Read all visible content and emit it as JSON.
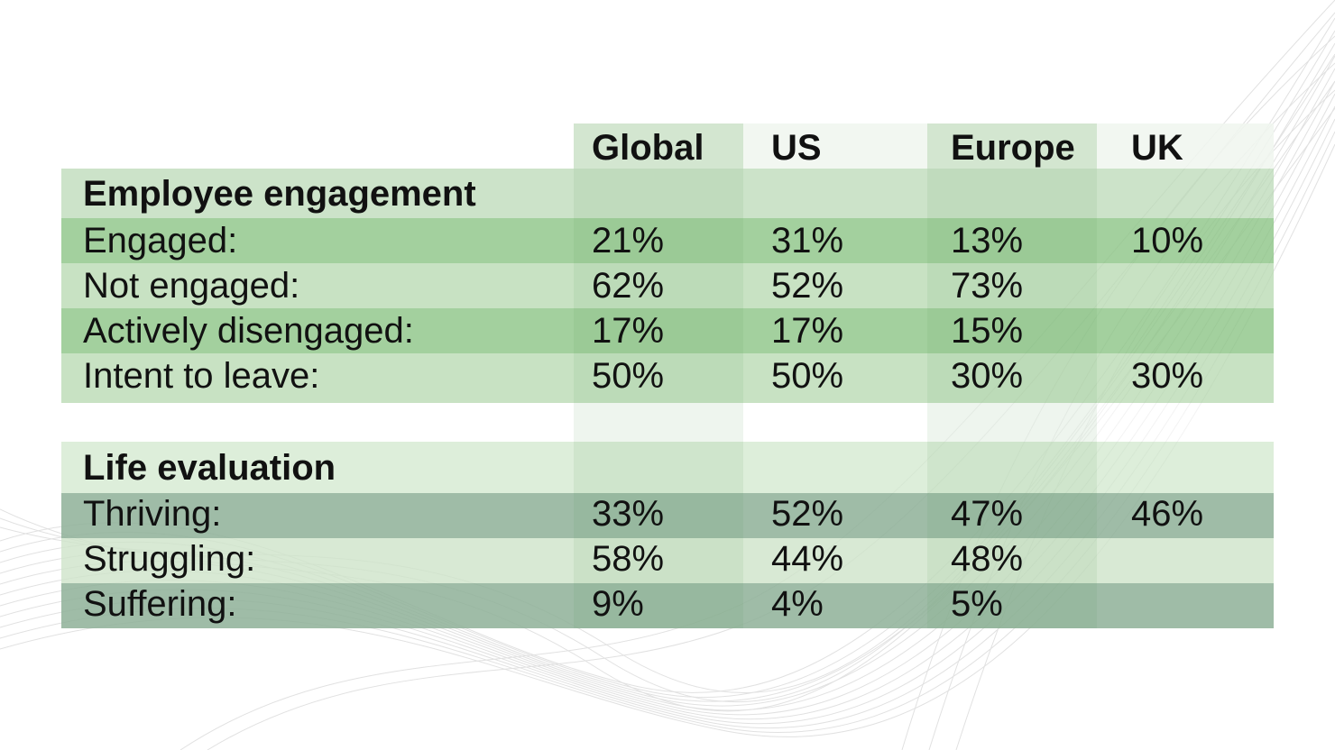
{
  "table": {
    "columns": [
      "Global",
      "US",
      "Europe",
      "UK"
    ],
    "sections": [
      {
        "title": "Employee engagement",
        "rows": [
          {
            "label": "Engaged:",
            "values": [
              "21%",
              "31%",
              "13%",
              "10%"
            ]
          },
          {
            "label": "Not engaged:",
            "values": [
              "62%",
              "52%",
              "73%",
              ""
            ]
          },
          {
            "label": "Actively disengaged:",
            "values": [
              "17%",
              "17%",
              "15%",
              ""
            ]
          },
          {
            "label": "Intent to leave:",
            "values": [
              "50%",
              "50%",
              "30%",
              "30%"
            ]
          }
        ]
      },
      {
        "title": "Life evaluation",
        "rows": [
          {
            "label": "Thriving:",
            "values": [
              "33%",
              "52%",
              "47%",
              "46%"
            ]
          },
          {
            "label": "Struggling:",
            "values": [
              "58%",
              "44%",
              "48%",
              ""
            ]
          },
          {
            "label": "Suffering:",
            "values": [
              "9%",
              "4%",
              "5%",
              ""
            ]
          }
        ]
      }
    ]
  },
  "colors": {
    "header_row": "#f2f7f1",
    "section_title_row_1": "#c9e2c6",
    "dark_row_1": "#9fcb9b",
    "light_row_1": "#c5e0c1",
    "spacer_row": "#eaf3e8",
    "section_title_row_2": "#ddeedb",
    "dark_row_2": "#9fbaa9",
    "light_row_2": "#d6e8d3",
    "column_band": "#5a9a55"
  }
}
